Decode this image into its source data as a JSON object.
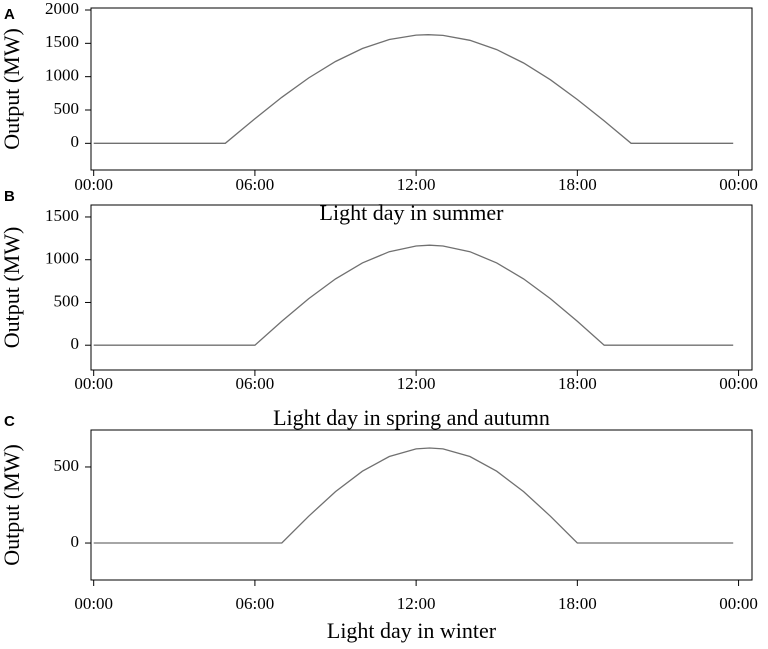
{
  "chart_data": [
    {
      "type": "line",
      "title": "A",
      "xlabel": "Light day in summer",
      "ylabel": "Output (MW)",
      "x": [
        0,
        4.9,
        6,
        7,
        8,
        9,
        10,
        11,
        12,
        12.45,
        13,
        14,
        15,
        16,
        17,
        18,
        19,
        20,
        23.8
      ],
      "values": [
        0,
        0,
        370,
        690,
        980,
        1228,
        1422,
        1557,
        1623,
        1630,
        1619,
        1546,
        1406,
        1205,
        953,
        658,
        337,
        0,
        0
      ],
      "color": "#707070",
      "xlim": [
        -0.1,
        24.5
      ],
      "xticks": [
        {
          "value": 0,
          "label": "00:00"
        },
        {
          "value": 6,
          "label": "06:00"
        },
        {
          "value": 12,
          "label": "12:00"
        },
        {
          "value": 18,
          "label": "18:00"
        },
        {
          "value": 24,
          "label": "00:00"
        }
      ],
      "ylim": [
        -400,
        2030
      ],
      "yticks": [
        0,
        500,
        1000,
        1500,
        2000
      ]
    },
    {
      "type": "line",
      "title": "B",
      "xlabel": "Light day in spring and autumn",
      "ylabel": "Output (MW)",
      "x": [
        0,
        6,
        7,
        8,
        9,
        10,
        11,
        12,
        12.5,
        13,
        14,
        15,
        16,
        17,
        18,
        19,
        23.8
      ],
      "values": [
        0,
        0,
        280,
        544,
        776,
        963,
        1094,
        1161,
        1170,
        1161,
        1094,
        963,
        776,
        544,
        280,
        0,
        0
      ],
      "color": "#707070",
      "xlim": [
        -0.1,
        24.5
      ],
      "xticks": [
        {
          "value": 0,
          "label": "00:00"
        },
        {
          "value": 6,
          "label": "06:00"
        },
        {
          "value": 12,
          "label": "12:00"
        },
        {
          "value": 18,
          "label": "18:00"
        },
        {
          "value": 24,
          "label": "00:00"
        }
      ],
      "ylim": [
        -290,
        1640
      ],
      "yticks": [
        0,
        500,
        1000,
        1500
      ]
    },
    {
      "type": "line",
      "title": "C",
      "xlabel": "Light day in winter",
      "ylabel": "Output (MW)",
      "x": [
        0,
        7,
        8,
        9,
        10,
        11,
        12,
        12.5,
        13,
        14,
        15,
        16,
        17,
        18,
        23.8
      ],
      "values": [
        0,
        0,
        176,
        338,
        472,
        569,
        619,
        625,
        619,
        569,
        472,
        338,
        176,
        0,
        0
      ],
      "color": "#707070",
      "xlim": [
        -0.1,
        24.5
      ],
      "xticks": [
        {
          "value": 0,
          "label": "00:00"
        },
        {
          "value": 6,
          "label": "06:00"
        },
        {
          "value": 12,
          "label": "12:00"
        },
        {
          "value": 18,
          "label": "18:00"
        },
        {
          "value": 24,
          "label": "00:00"
        }
      ],
      "ylim": [
        -243,
        743
      ],
      "yticks": [
        0,
        500
      ]
    }
  ]
}
